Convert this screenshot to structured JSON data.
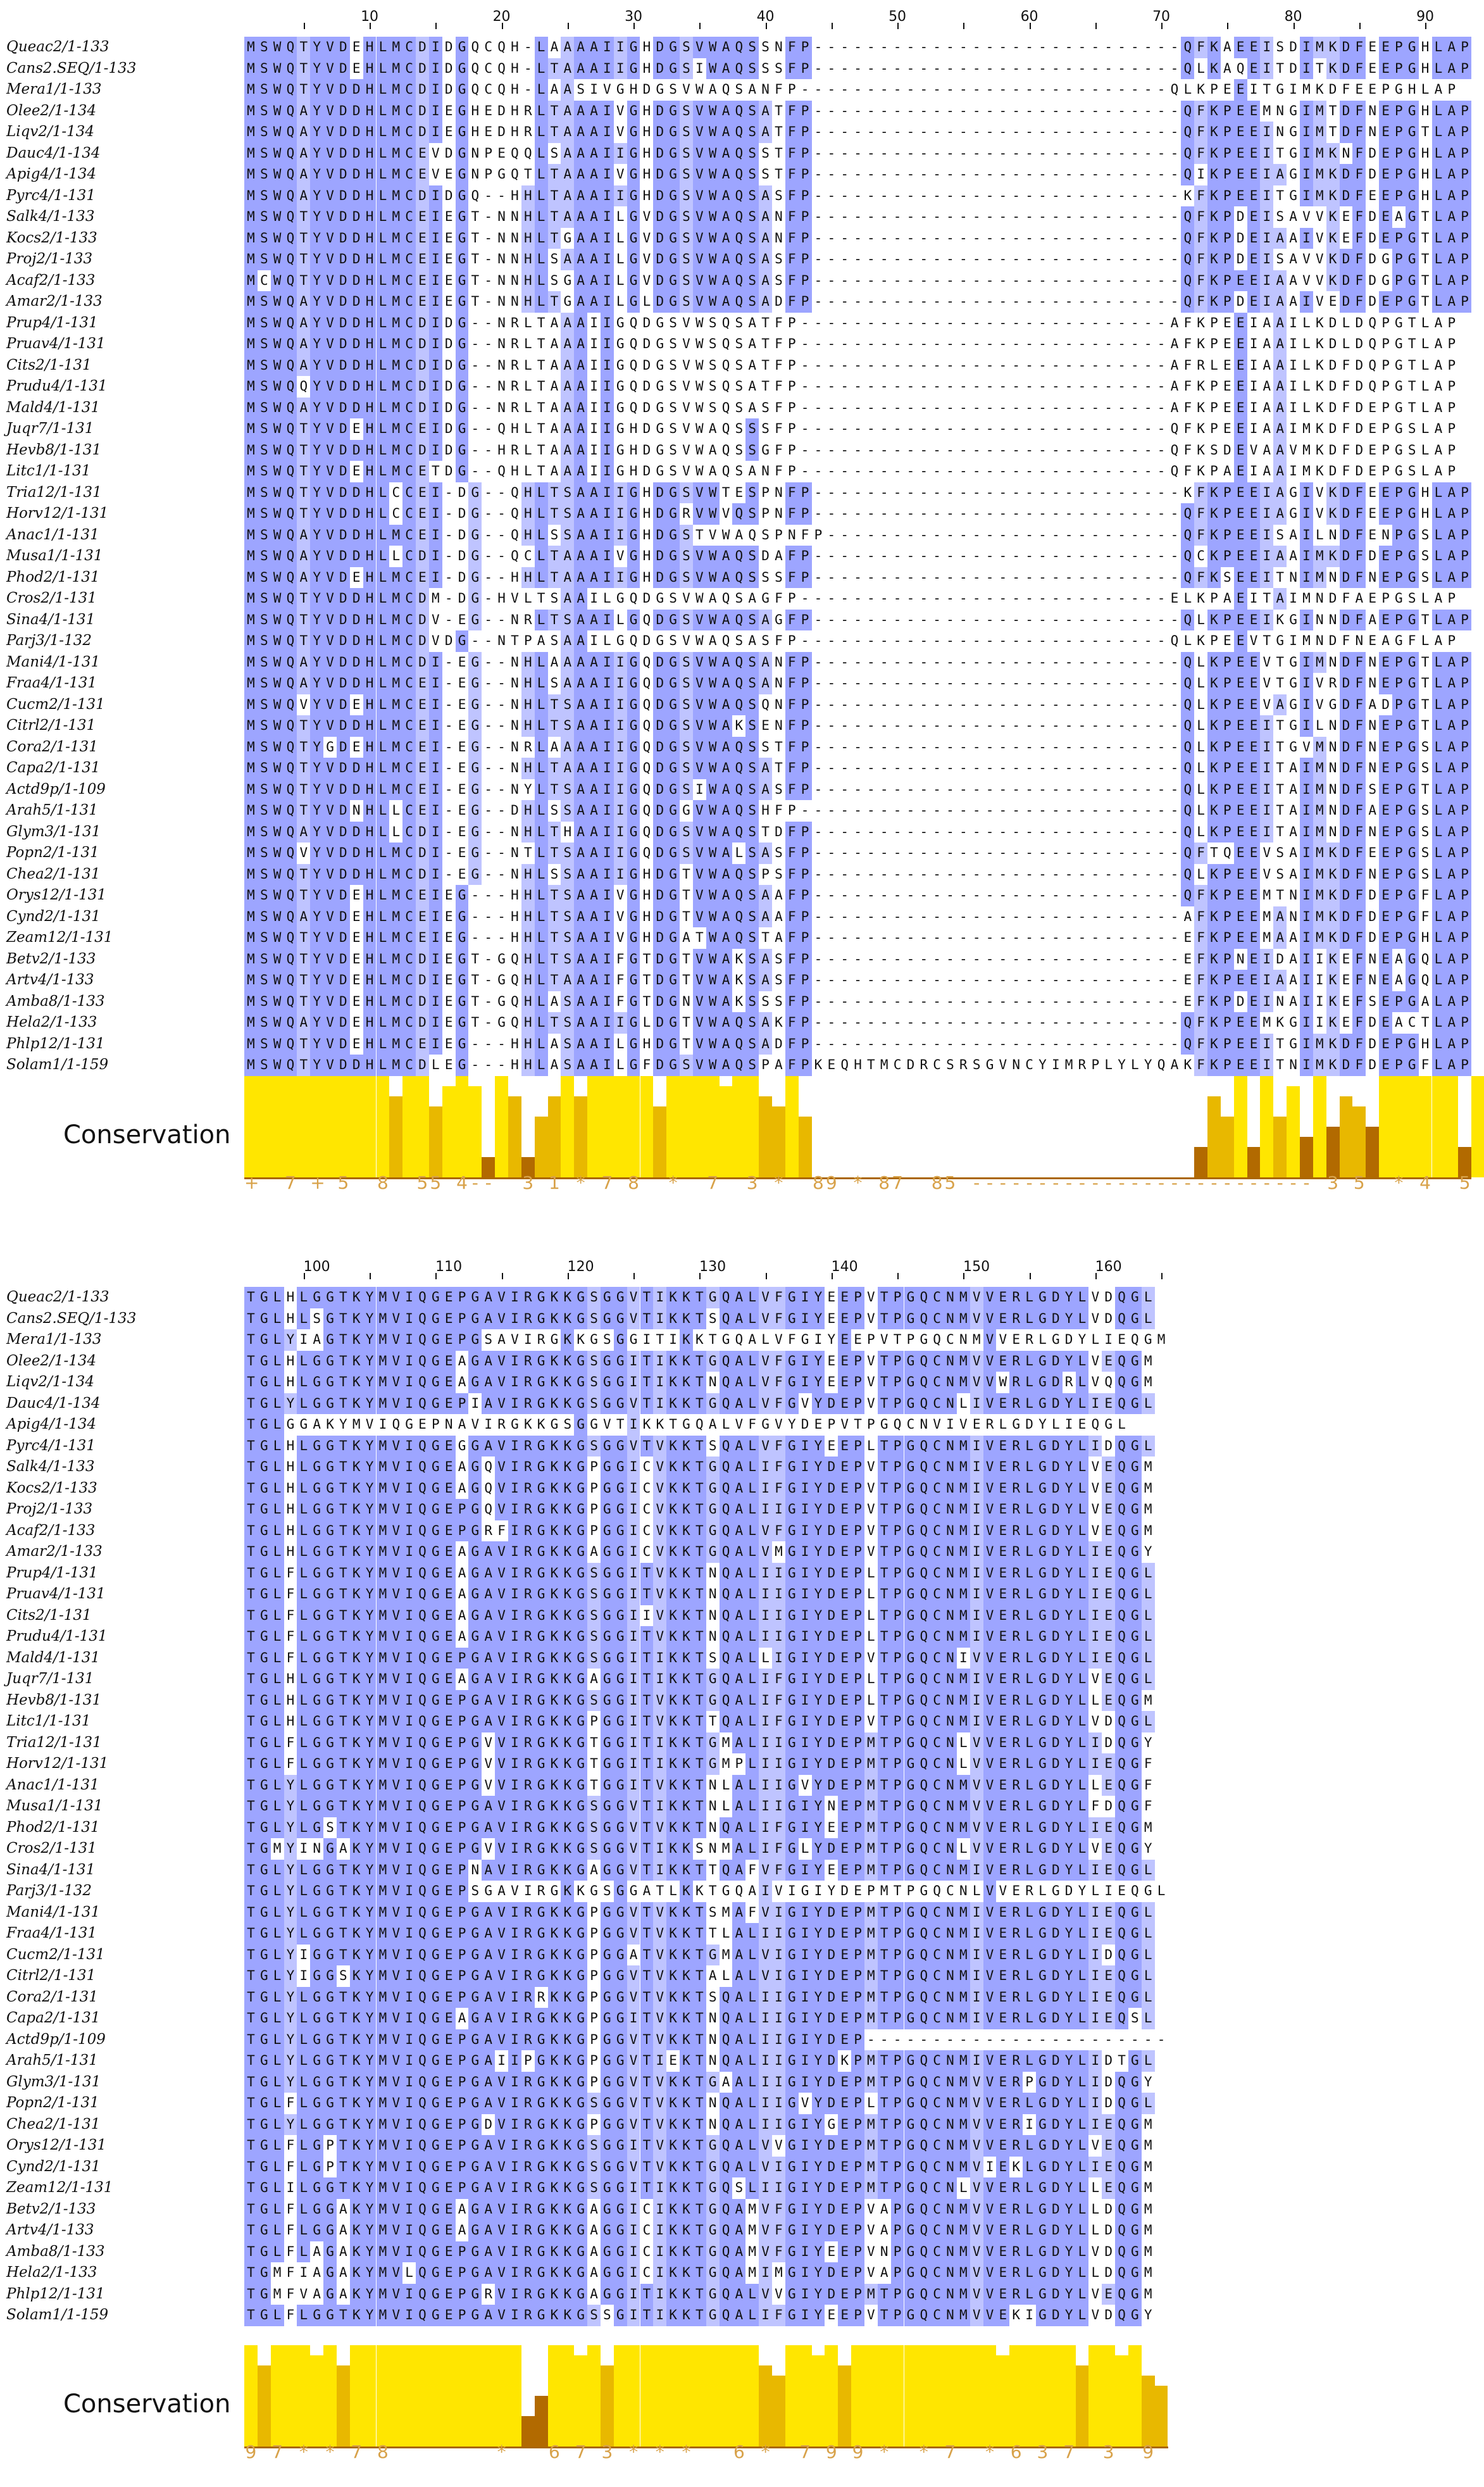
{
  "colors": {
    "strong": "#9da5ff",
    "weak": "#bfc4ff",
    "cons_high": "#ffe600",
    "cons_mid": "#e8b800",
    "cons_low": "#b26a00"
  },
  "conservation_label": "Conservation",
  "names": [
    "Queac2/1-133",
    "Cans2.SEQ/1-133",
    "Mera1/1-133",
    "Olee2/1-134",
    "Liqv2/1-134",
    "Dauc4/1-134",
    "Apig4/1-134",
    "Pyrc4/1-131",
    "Salk4/1-133",
    "Kocs2/1-133",
    "Proj2/1-133",
    "Acaf2/1-133",
    "Amar2/1-133",
    "Prup4/1-131",
    "Pruav4/1-131",
    "Cits2/1-131",
    "Prudu4/1-131",
    "Mald4/1-131",
    "Juqr7/1-131",
    "Hevb8/1-131",
    "Litc1/1-131",
    "Tria12/1-131",
    "Horv12/1-131",
    "Anac1/1-131",
    "Musa1/1-131",
    "Phod2/1-131",
    "Cros2/1-131",
    "Sina4/1-131",
    "Parj3/1-132",
    "Mani4/1-131",
    "Fraa4/1-131",
    "Cucm2/1-131",
    "Citrl2/1-131",
    "Cora2/1-131",
    "Capa2/1-131",
    "Actd9p/1-109",
    "Arah5/1-131",
    "Glym3/1-131",
    "Popn2/1-131",
    "Chea2/1-131",
    "Orys12/1-131",
    "Cynd2/1-131",
    "Zeam12/1-131",
    "Betv2/1-133",
    "Artv4/1-133",
    "Amba8/1-133",
    "Hela2/1-133",
    "Phlp12/1-131",
    "Solam1/1-159"
  ],
  "block1": {
    "ruler": [
      "10",
      "20",
      "30",
      "40",
      "50",
      "60",
      "70",
      "80",
      "90"
    ],
    "seqs": [
      "MSWQTYVDEHLMCDIDGQCQH-LAAAAIIGHDGSVWAQSSNFP----------------------------QFKAEEISDIMKDFEEPGHLAP",
      "MSWQTYVDEHLMCDIDGQCQH-LTAAAIIGHDGSIWAQSSSFP----------------------------QLKAQEITDITKDFEEPGHLAP",
      "MSWQTYVDDHLMCDIDGQCQH-LAASIVGHDGSVWAQSANFP----------------------------QLKPEEITGIMKDFEEPGHLAP",
      "MSWQAYVDDHLMCDIEGHEDHRLTAAAIVGHDGSVWAQSATFP----------------------------QFKPEEMNGIMTDFNEPGHLAP",
      "MSWQAYVDDHLMCDIEGHEDHRLTAAAIVGHDGSVWAQSATFP----------------------------QFKPEEINGIMTDFNEPGTLAP",
      "MSWQAYVDDHLMCEVDGNPEQQLSAAAIIGHDGSVWAQSSTFP----------------------------QFKPEEITGIMKNFDEPGHLAP",
      "MSWQAYVDDHLMCEVEGNPGQTLTAAAIVGHDGSVWAQSSTFP----------------------------QIKPEEIAGIMKDFDEPGHLAP",
      "MSWQAYVDDHLMCDIDGQ--HHLTAAAIIGHDGSVWAQSASFP----------------------------KFKPEEITGIMKDFEEPGHLAP",
      "MSWQTYVDDHLMCEIEGT-NNHLTAAAILGVDGSVWAQSANFP----------------------------QFKPDEISAVVKEFDEAGTLAP",
      "MSWQTYVDDHLMCEIEGT-NNHLTGAAILGVDGSVWAQSANFP----------------------------QFKPDEIAAIVKEFDEPGTLAP",
      "MSWQTYVDDHLMCEIEGT-NNHLSAAAILGVDGSVWAQSASFP----------------------------QFKPDEISAVVKDFDGPGTLAP",
      "MCWQTYVDDHLMCEIEGT-NNHLSGAAILGVDGSVWAQSASFP----------------------------QFKPEEIAAVVKDFDGPGTLAP",
      "MSWQAYVDDHLMCEIEGT-NNHLTGAAILGLDGSVWAQSADFP----------------------------QFKPDEIAAIVEDFDEPGTLAP",
      "MSWQAYVDDHLMCDIDG--NRLTAAAIIGQDGSVWSQSATFP----------------------------AFKPEEIAAILKDLDQPGTLAP",
      "MSWQAYVDDHLMCDIDG--NRLTAAAIIGQDGSVWSQSATFP----------------------------AFKPEEIAAILKDLDQPGTLAP",
      "MSWQAYVDDHLMCDIDG--NRLTAAAIIGQDGSVWSQSATFP----------------------------AFRLEEIAAILKDFDQPGTLAP",
      "MSWQQYVDDHLMCDIDG--NRLTAAAIIGQDGSVWSQSATFP----------------------------AFKPEEIAAILKDFDQPGTLAP",
      "MSWQAYVDDHLMCDIDG--NRLTAAAIIGQDGSVWSQSASFP----------------------------AFKPEEIAAILKDFDEPGTLAP",
      "MSWQTYVDEHLMCEIDG--QHLTAAAIIGHDGSVWAQSSSFP----------------------------QFKPEEIAAIMKDFDEPGSLAP",
      "MSWQTYVDDHLMCDIDG--HRLTAAAIIGHDGSVWAQSSGFP----------------------------QFKSDEVAAVMKDFDEPGSLAP",
      "MSWQTYVDEHLMCETDG--QHLTAAAIIGHDGSVWAQSANFP----------------------------QFKPAEIAAIMKDFDEPGSLAP",
      "MSWQTYVDDHLCCEI-DG--QHLTSAAIIGHDGSVWTESPNFP----------------------------KFKPEEIAGIVKDFEEPGHLAP",
      "MSWQTYVDDHLCCEI-DG--QHLTSAAIIGHDGRVWVQSPNFP----------------------------QFKPEEIAGIVKDFEEPGHLAP",
      "MSWQAYVDDHLMCEI-DG--QHLSSAAIIGHDGSTVWAQSPNFP---------------------------QFKPEEISAILNDFENPGSLAP",
      "MSWQAYVDDHLLCDI-DG--QCLTAAAIVGHDGSVWAQSDAFP----------------------------QCKPEEIAAIMKDFDEPGSLAP",
      "MSWQAYVDEHLMCEI-DG--HHLTAAAIIGHDGSVWAQSSSFP----------------------------QFKSEEITNIMNDFNEPGSLAP",
      "MSWQTYVDDHLMCDM-DG-HVLTSAAILGQDGSVWAQSAGFP----------------------------ELKPAEITAIMNDFAEPGSLAP",
      "MSWQTYVDDHLMCDV-EG--NRLTSAAILGQDGSVWAQSAGFP----------------------------QLKPEEIKGINNDFAEPGTLAP",
      "MSWQTYVDDHLMCDVDG--NTPASAAILGQDGSVWAQSASFP----------------------------QLKPEEVTGIMNDFNEAGFLAP",
      "MSWQAYVDDHLMCDI-EG--NHLAAAAIIGQDGSVWAQSANFP----------------------------QLKPEEVTGIMNDFNEPGTLAP",
      "MSWQAYVDDHLMCEI-EG--NHLSAAAIIGQDGSVWAQSANFP----------------------------QLKPEEVTGIVRDFNEPGTLAP",
      "MSWQVYVDEHLMCEI-EG--NHLTSAAIIGQDGSVWAQSQNFP----------------------------QLKPEEVAGIVGDFADPGTLAP",
      "MSWQTYVDDHLMCEI-EG--NHLTSAAIIGQDGSVWAKSENFP----------------------------QLKPEEITGILNDFNEPGTLAP",
      "MSWQTYGDEHLMCEI-EG--NRLAAAAIIGQDGSVWAQSSTFP----------------------------QLKPEEITGVMNDFNEPGSLAP",
      "MSWQTYVDDHLMCEI-EG--NHLTAAAIIGQDGSVWAQSATFP----------------------------QLKPEEITAIMNDFNEPGSLAP",
      "MSWQTYVDDHLMCEI-EG--NYLTSAAIIGQDGSIWAQSASFP----------------------------QLKPEEITAIMNDFSEPGTLAP",
      "MSWQTYVDNHLLCEI-EG--DHLSSAAIIGQDGGVWAQSHFP-----------------------------QLKPEEITAIMNDFAEPGSLAP",
      "MSWQAYVDDHLLCDI-EG--NHLTHAAIIGQDGSVWAQSTDFP----------------------------QLKPEEITAIMNDFNEPGSLAP",
      "MSWQVYVDDHLMCDI-EG--NTLTSAAIIGQDGSVWALSASFP----------------------------QFTQEEVSAIMKDFEEPGSLAP",
      "MSWQTYVDDHLMCDI-EG--NHLSSAAIIGHDGTVWAQSPSFP----------------------------QLKPEEVSAIMKDFNEPGSLAP",
      "MSWQTYVDEHLMCEIEG---HHLTSAAIVGHDGTVWAQSAAFP----------------------------QFKPEEMTNIMKDFDEPGFLAP",
      "MSWQAYVDEHLMCEIEG---HHLTSAAIVGHDGTVWAQSAAFP----------------------------AFKPEEMANIMKDFDEPGFLAP",
      "MSWQTYVDEHLMCEIEG---HHLTSAAIVGHDGATWAQSTAFP----------------------------EFKPEEMAAIMKDFDEPGHLAP",
      "MSWQTYVDEHLMCDIEGT-GQHLTSAAIFGTDGTVWAKSASFP----------------------------EFKPNEIDAIIKEFNEAGQLAP",
      "MSWQTYVDEHLMCDIEGT-GQHLTAAAIFGTDGTVWAKSASFP----------------------------EFKPEEIAAIIKEFNEAGQLAP",
      "MSWQTYVDEHLMCDIEGT-GQHLASAAIFGTDGNVWAKSSSFP----------------------------EFKPDEINAIIKEFSEPGALAP",
      "MSWQAYVDEHLMCDIEGT-GQHLTSAAIIGLDGTVWAQSAKFP----------------------------QFKPEEMKGIIKEFDEACTLAP",
      "MSWQTYVDEHLMCEIEG---HHLASAAILGHDGTVWAQSADFP----------------------------QFKPEEITGIMKDFDEPGHLAP",
      "MSWQTYVDDHLMCDLEG---HHLASAAILGFDGSVWAQSPAFPKEQHTMCDRCSRSGVNCYIMRPLYLYQAKFKPEEITNIMKDFDEPGFLAP"
    ],
    "cons_scores": "+  7 + 5  8  55 4--  3 1 * 7 8  *  7  3 *  89 * 87  85 -------------------------- 3 5  * 4  5  5 6  3 * 4 4 7  5",
    "cons_heights": [
      10,
      10,
      10,
      10,
      10,
      10,
      10,
      10,
      10,
      10,
      10,
      8,
      10,
      10,
      7,
      9,
      10,
      9,
      2,
      10,
      8,
      2,
      6,
      8,
      10,
      8,
      10,
      10,
      10,
      10,
      10,
      7,
      10,
      10,
      10,
      10,
      9,
      10,
      10,
      8,
      7,
      10,
      6,
      0,
      0,
      0,
      0,
      0,
      0,
      0,
      0,
      0,
      0,
      0,
      0,
      0,
      0,
      0,
      0,
      0,
      0,
      0,
      0,
      0,
      0,
      0,
      0,
      0,
      0,
      0,
      0,
      0,
      3,
      8,
      6,
      10,
      3,
      10,
      6,
      9,
      4,
      10,
      5,
      8,
      7,
      5,
      10,
      10,
      10,
      10,
      10,
      10,
      3,
      10,
      10,
      10
    ]
  },
  "block2": {
    "ruler": [
      "100",
      "110",
      "120",
      "130",
      "140",
      "150",
      "160"
    ],
    "seqs": [
      "TGLHLGGTKYMVIQGEPGAVIRGKKGSGGVTIKKTGQALVFGIYEEPVTPGQCNMVVERLGDYLVDQGL",
      "TGLHLSGTKYMVIQGEPGAVIRGKKGSGGVTIKKTSQALVFGIYEEPVTPGQCNMVVERLGDYLVDQGL",
      "TGLYIAGTKYMVIQGEPGSAVIRGKKGSGGITIKKTGQALVFGIYEEPVTPGQCNMVVERLGDYLIEQGM",
      "TGLHLGGTKYMVIQGEAGAVIRGKKGSGGITIKKTGQALVFGIYEEPVTPGQCNMVVERLGDYLVEQGM",
      "TGLHLGGTKYMVIQGEAGAVIRGKKGSGGITIKKTNQALVFGIYEEPVTPGQCNMVVWRLGDRLVQQGM",
      "TGLYLGGTKYMVIQGEPIAVIRGKKGSGGVTIKKTGQALVFGVYDEPVTPGQCNLIVERLGDYLIEQGL",
      "TGLGGAKYMVIQGEPNAVIRGKKGSGGVTIKKTGQALVFGVYDEPVTPGQCNVIVERLGDYLIEQGL",
      "TGLHLGGTKYMVIQGEGGAVIRGKKGSGGVTVKKTSQALVFGIYEEPLTPGQCNMIVERLGDYLIDQGL",
      "TGLHLGGTKYMVIQGEAGQVIRGKKGPGGICVKKTGQALIFGIYDEPVTPGQCNMIVERLGDYLVEQGM",
      "TGLHLGGTKYMVIQGEAGQVIRGKKGPGGICVKKTGQALIFGIYDEPVTPGQCNMIVERLGDYLVEQGM",
      "TGLHLGGTKYMVIQGEPGQVIRGKKGPGGICVKKTGQALIIGIYDEPVTPGQCNMIVERLGDYLVEQGM",
      "TGLHLGGTKYMVIQGEPGRFIRGKKGPGGICVKKTGQALVFGIYDEPVTPGQCNMIVERLGDYLVEQGM",
      "TGLHLGGTKYMVIQGEAGAVIRGKKGAGGICVKKTGQALVMGIYDEPVTPGQCNMIVERLGDYLIEQGY",
      "TGLFLGGTKYMVIQGEAGAVIRGKKGSGGITVKKTNQALIIGIYDEPLTPGQCNMIVERLGDYLIEQGL",
      "TGLFLGGTKYMVIQGEAGAVIRGKKGSGGITVKKTNQALIIGIYDEPLTPGQCNMIVERLGDYLIEQGL",
      "TGLFLGGTKYMVIQGEAGAVIRGKKGSGGIIVKKTNQALIIGIYDEPLTPGQCNMIVERLGDYLIEQGL",
      "TGLFLGGTKYMVIQGEAGAVIRGKKGSGGITVKKTNQALIIGIYDEPLTPGQCNMIVERLGDYLIEQGL",
      "TGLFLGGTKYMVIQGEPGAVIRGKKGSGGITIKKTSQALLIGIYDEPVTPGQCNIVVERLGDYLIEQGL",
      "TGLHLGGTKYMVIQGEAGAVIRGKKGAGGITIKKTGQALIFGIYDEPLTPGQCNMIVERLGDYLVEQGL",
      "TGLHLGGTKYMVIQGEPGAVIRGKKGSGGITVKKTGQALIFGIYDEPLTPGQCNMIVERLGDYLLEQGM",
      "TGLHLGGTKYMVIQGEPGAVIRGKKGPGGITVKKTTQALIFGIYDEPVTPGQCNMIVERLGDYLVDQGL",
      "TGLFLGGTKYMVIQGEPGVVIRGKKGTGGITIKKTGMALIIGIYDEPMTPGQCNLVVERLGDYLIDQGY",
      "TGLFLGGTKYMVIQGEPGVVIRGKKGTGGITIKKTGMPLIIGIYDEPMTPGQCNLVVERLGDYLIEQGF",
      "TGLYLGGTKYMVIQGEPGVVIRGKKGTGGITVKKTNLALIIGVYDEPMTPGQCNMVVERLGDYLLEQGF",
      "TGLYLGGTKYMVIQGEPGAVIRGKKGSGGVTIKKTNLALIIGIYNEPMTPGQCNMVVERLGDYLFDQGF",
      "TGLYLGSTKYMVIQGEPGAVIRGKKGSGGVTVKKTNQALIFGIYEEPMTPGQCNMVVERLGDYLIEQGM",
      "TGMYINGAKYMVIQGEPGVVIRGKKGSGGVTIKKSNMALIFGLYDEPMTPGQCNLVVERLGDYLVEQGY",
      "TGLYLGGTKYMVIQGEPNAVIRGKKGAGGVTIKKTTQAFVFGIYEEPMTPGQCNMIVERLGDYLIEQGL",
      "TGLYLGGTKYMVIQGEPSGAVIRGKKGSGGATLKKTGQAIVIGIYDEPMTPGQCNLVVERLGDYLIEQGL",
      "TGLYLGGTKYMVIQGEPGAVIRGKKGPGGVTVKKTSMAFVIGIYDEPMTPGQCNMIVERLGDYLIEQGL",
      "TGLYLGGTKYMVIQGEPGAVIRGKKGPGGVTVKKTTLALIIGIYDEPMTPGQCNMIVERLGDYLIEQGL",
      "TGLYIGGTKYMVIQGEPGAVIRGKKGPGGATVKKTGMALVIGIYDEPMTPGQCNMIVERLGDYLIDQGL",
      "TGLYIGGSKYMVIQGEPGAVIRGKKGPGGVTVKKTALALVIGIYDEPMTPGQCNMIVERLGDYLIEQGL",
      "TGLYLGGTKYMVIQGEPGAVIRRKKGPGGVTVKKTSQALIIGIYDEPMTPGQCNMIVERLGDYLIEQGL",
      "TGLYLGGTKYMVIQGEAGAVIRGKKGPGGITVKKTNQALIIGIYDEPMTPGQCNMIVERLGDYLIEQSL",
      "TGLYLGGTKYMVIQGEPGAVIRGKKGPGGVTVKKTNQALIIGIYDEP-----------------------",
      "TGLYLGGTKYMVIQGEPGAIIPGKKGPGGVTIEKTNQALIIGIYDKPMTPGQCNMIVERLGDYLIDTGL",
      "TGLYLGGTKYMVIQGEPGAVIRGKKGPGGVTVKKTGAALIIGIYDEPMTPGQCNMVVERPGDYLIDQGY",
      "TGLFLGGTKYMVIQGEPGAVIRGKKGSGGVTVKKTNQALIIGVYDEPLTPGQCNMVVERLGDYLIDQGL",
      "TGLYLGGTKYMVIQGEPGDVIRGKKGPGGVTVKKTNQALIIGIYGEPMTPGQCNMVVERIGDYLIEQGM",
      "TGLFLGPTKYMVIQGEPGAVIRGKKGSGGITVKKTGQALVVGIYDEPMTPGQCNMVVERLGDYLVEQGM",
      "TGLFLGPTKYMVIQGEPGAVIRGKKGSGGVTVKKTGQALVIGIYDEPMTPGQCNMVIEKLGDYLIEQGM",
      "TGLILGGTKYMVIQGEPGAVIRGKKGSGGITIKKTGQSLIIGIYDEPMTPGQCNLVVERLGDYLLEQGM",
      "TGLFLGGAKYMVIQGEAGAVIRGKKGAGGICIKKTGQAMVFGIYDEPVAPGQCNMVVERLGDYLLDQGM",
      "TGLFLGGAKYMVIQGEAGAVIRGKKGAGGICIKKTGQAMVFGIYDEPVAPGQCNMVVERLGDYLLDQGM",
      "TGLFLAGAKYMVIQGEPGAVIRGKKGAGGICIKKTGQAMVFGIYEEPVNPGQCNMVVERLGDYLVDQGM",
      "TGMFIAGAKYMVLQGEPGAVIRGKKGAGGICIKKTGQAMIMGIYDEPVAPGQCNMVVERLGDYLLDQGM",
      "TGMFVAGAKYMVIQGEPGRVIRGKKGAGGITIKKTGQALVVGIYDEPMTPGQCNMVVERLGDYLVEQGM",
      "TGLFLGGTKYMVIQGEPGAVIRGKKGSSGITIKKTGQALIFGIYEEPVTPGQCNMVVEKIGDYLVDQGY"
    ],
    "cons_scores": "9 7 * * 7 8        *   6 7 3 * * *   6 *  7 9 9 *  * 7  * 6 3 7  3  9 * 8 8       9 9 * 9 *   * 3 5 * * 7",
    "cons_heights": [
      10,
      8,
      10,
      10,
      10,
      9,
      10,
      8,
      10,
      10,
      10,
      10,
      10,
      10,
      10,
      10,
      10,
      10,
      10,
      10,
      10,
      3,
      5,
      10,
      10,
      9,
      10,
      8,
      10,
      10,
      10,
      10,
      10,
      10,
      10,
      10,
      10,
      10,
      10,
      8,
      7,
      10,
      10,
      9,
      10,
      8,
      10,
      10,
      10,
      10,
      10,
      10,
      10,
      10,
      10,
      10,
      10,
      9,
      10,
      10,
      10,
      10,
      10,
      8,
      10,
      10,
      9,
      10,
      7,
      6
    ]
  }
}
